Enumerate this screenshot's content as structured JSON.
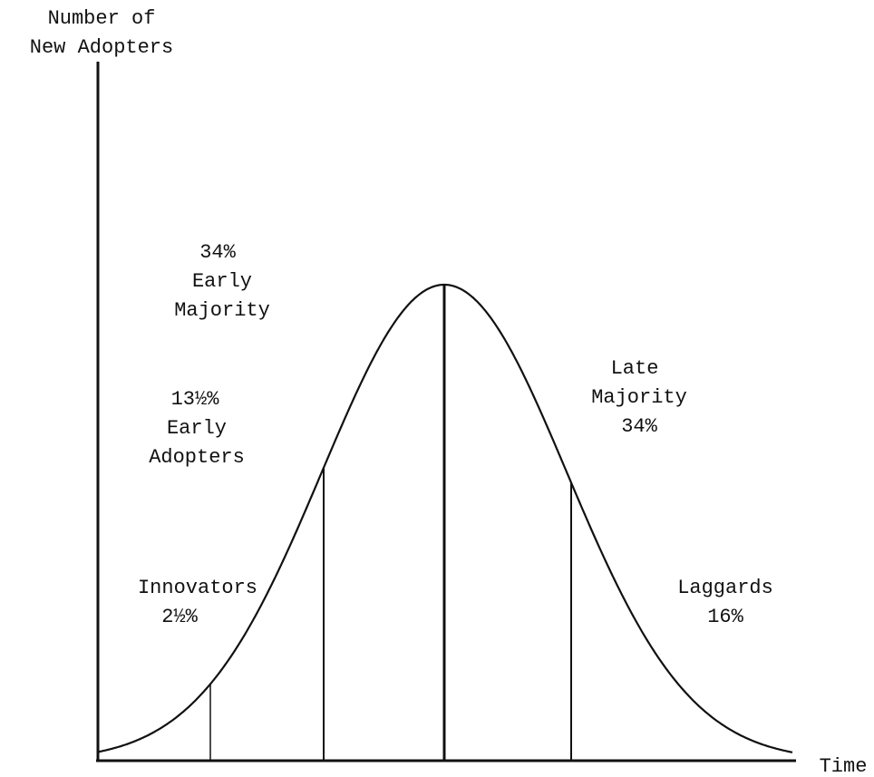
{
  "y_axis_label": [
    "Number of",
    "New Adopters"
  ],
  "x_axis_label": "Time",
  "segments": [
    {
      "lines": [
        "Innovators",
        "2½%"
      ]
    },
    {
      "lines": [
        "13½%",
        "Early",
        "Adopters"
      ]
    },
    {
      "lines": [
        "34%",
        "Early",
        "Majority"
      ]
    },
    {
      "lines": [
        "Late",
        "Majority",
        "34%"
      ]
    },
    {
      "lines": [
        "Laggards",
        "16%"
      ]
    }
  ]
}
